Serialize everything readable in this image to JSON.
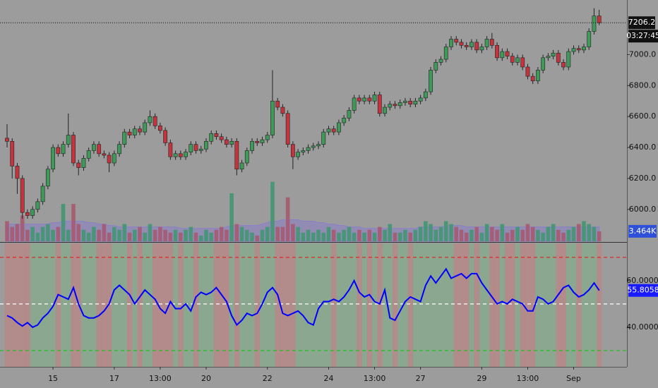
{
  "chart_data": {
    "type": "candlestick",
    "categories": [
      null,
      null,
      null,
      null,
      null,
      null,
      null,
      null,
      null,
      "15",
      null,
      null,
      null,
      null,
      null,
      null,
      null,
      null,
      null,
      null,
      null,
      "17",
      null,
      null,
      null,
      null,
      null,
      null,
      null,
      null,
      "13:00",
      null,
      null,
      null,
      null,
      null,
      null,
      null,
      null,
      "20",
      null,
      null,
      null,
      null,
      null,
      null,
      null,
      null,
      null,
      null,
      null,
      "22",
      null,
      null,
      null,
      null,
      null,
      null,
      null,
      null,
      null,
      null,
      null,
      "24",
      null,
      null,
      null,
      null,
      null,
      null,
      null,
      null,
      "13:00",
      null,
      null,
      null,
      null,
      null,
      null,
      null,
      null,
      "27",
      null,
      null,
      null,
      null,
      null,
      null,
      null,
      null,
      null,
      null,
      null,
      "29",
      null,
      null,
      null,
      null,
      null,
      null,
      null,
      null,
      "13:00",
      null,
      null,
      null,
      null,
      null,
      null,
      null,
      null,
      "Sep",
      null,
      null,
      null,
      null,
      null
    ],
    "open": [
      6460,
      6440,
      6280,
      6200,
      5980,
      5960,
      6000,
      6050,
      6150,
      6260,
      6400,
      6360,
      6420,
      6480,
      6300,
      6270,
      6330,
      6380,
      6420,
      6360,
      6350,
      6300,
      6360,
      6420,
      6500,
      6480,
      6520,
      6500,
      6560,
      6600,
      6540,
      6510,
      6430,
      6340,
      6360,
      6340,
      6370,
      6420,
      6380,
      6390,
      6440,
      6490,
      6470,
      6450,
      6420,
      6440,
      6260,
      6300,
      6380,
      6440,
      6430,
      6450,
      6480,
      6700,
      6660,
      6620,
      6420,
      6340,
      6370,
      6380,
      6400,
      6410,
      6420,
      6500,
      6520,
      6500,
      6560,
      6590,
      6640,
      6720,
      6700,
      6720,
      6700,
      6740,
      6620,
      6660,
      6680,
      6670,
      6690,
      6700,
      6680,
      6700,
      6720,
      6760,
      6900,
      6950,
      6970,
      7050,
      7100,
      7080,
      7060,
      7050,
      7080,
      7030,
      7050,
      7100,
      7060,
      6980,
      7020,
      6990,
      6950,
      6980,
      6920,
      6860,
      6830,
      6900,
      6980,
      6990,
      7010,
      6950,
      6920,
      7020,
      7040,
      7030,
      7050,
      7150,
      7250
    ],
    "high": [
      6550,
      6460,
      6300,
      6220,
      6000,
      6020,
      6070,
      6170,
      6280,
      6420,
      6420,
      6440,
      6620,
      6500,
      6320,
      6350,
      6400,
      6440,
      6440,
      6380,
      6370,
      6380,
      6440,
      6520,
      6520,
      6540,
      6540,
      6580,
      6640,
      6620,
      6560,
      6530,
      6450,
      6380,
      6380,
      6390,
      6440,
      6440,
      6410,
      6460,
      6510,
      6510,
      6490,
      6470,
      6460,
      6460,
      6320,
      6400,
      6460,
      6460,
      6470,
      6500,
      6900,
      6720,
      6680,
      6640,
      6440,
      6390,
      6400,
      6420,
      6430,
      6440,
      6520,
      6540,
      6540,
      6580,
      6610,
      6660,
      6740,
      6740,
      6740,
      6740,
      6760,
      6760,
      6680,
      6700,
      6700,
      6710,
      6720,
      6720,
      6720,
      6740,
      6780,
      6920,
      6970,
      6990,
      7070,
      7120,
      7120,
      7100,
      7080,
      7100,
      7100,
      7070,
      7120,
      7140,
      7080,
      7040,
      7040,
      7010,
      7000,
      7000,
      6940,
      6880,
      6920,
      7000,
      7010,
      7030,
      7030,
      6970,
      7040,
      7060,
      7060,
      7070,
      7170,
      7300,
      7290
    ],
    "low": [
      6400,
      6200,
      6100,
      5940,
      5940,
      5940,
      5980,
      6030,
      6130,
      6240,
      6340,
      6340,
      6400,
      6280,
      6220,
      6250,
      6310,
      6360,
      6340,
      6330,
      6240,
      6280,
      6340,
      6400,
      6460,
      6460,
      6480,
      6480,
      6540,
      6520,
      6490,
      6410,
      6320,
      6320,
      6320,
      6320,
      6350,
      6360,
      6360,
      6370,
      6420,
      6450,
      6430,
      6400,
      6400,
      6220,
      6240,
      6280,
      6360,
      6410,
      6410,
      6430,
      6460,
      6640,
      6600,
      6400,
      6260,
      6320,
      6350,
      6360,
      6380,
      6390,
      6400,
      6480,
      6480,
      6480,
      6540,
      6570,
      6620,
      6680,
      6680,
      6680,
      6680,
      6600,
      6600,
      6640,
      6650,
      6650,
      6670,
      6660,
      6660,
      6680,
      6700,
      6740,
      6880,
      6930,
      6950,
      7030,
      7060,
      7040,
      7030,
      7030,
      7010,
      7010,
      7030,
      7040,
      6960,
      6960,
      6970,
      6930,
      6930,
      6900,
      6840,
      6810,
      6810,
      6880,
      6960,
      6970,
      6930,
      6900,
      6900,
      7000,
      7010,
      7010,
      7030,
      7130,
      7190
    ],
    "close": [
      6440,
      6280,
      6200,
      5980,
      5960,
      6000,
      6050,
      6150,
      6260,
      6400,
      6360,
      6420,
      6480,
      6300,
      6270,
      6330,
      6380,
      6420,
      6360,
      6350,
      6300,
      6360,
      6420,
      6500,
      6480,
      6520,
      6500,
      6560,
      6600,
      6540,
      6510,
      6430,
      6340,
      6360,
      6340,
      6370,
      6420,
      6380,
      6390,
      6440,
      6490,
      6470,
      6450,
      6420,
      6440,
      6260,
      6300,
      6380,
      6440,
      6430,
      6450,
      6480,
      6700,
      6660,
      6620,
      6420,
      6340,
      6370,
      6380,
      6400,
      6410,
      6420,
      6500,
      6520,
      6500,
      6560,
      6590,
      6640,
      6720,
      6700,
      6720,
      6700,
      6740,
      6620,
      6660,
      6680,
      6670,
      6690,
      6700,
      6680,
      6700,
      6720,
      6760,
      6900,
      6950,
      6970,
      7050,
      7100,
      7080,
      7060,
      7050,
      7080,
      7030,
      7050,
      7100,
      7060,
      6980,
      7020,
      6990,
      6950,
      6980,
      6920,
      6860,
      6830,
      6900,
      6980,
      6990,
      7010,
      6950,
      6920,
      7020,
      7040,
      7030,
      7050,
      7150,
      7250,
      7206.2
    ],
    "colors": {
      "up": "#3f9a5a",
      "down": "#c4343f"
    },
    "ylim": [
      5794,
      7353
    ],
    "yticks": [
      {
        "value": 6000,
        "label": "6000.0"
      },
      {
        "value": 6200,
        "label": "6200.0"
      },
      {
        "value": 6400,
        "label": "6400.0"
      },
      {
        "value": 6600,
        "label": "6600.0"
      },
      {
        "value": 6800,
        "label": "6800.0"
      },
      {
        "value": 7000,
        "label": "7000.0"
      }
    ],
    "countdown": "03:27:45",
    "volume": {
      "values": [
        7,
        5,
        6,
        9,
        4,
        5,
        3,
        5,
        6,
        4,
        5,
        13,
        4,
        13,
        6,
        4,
        3,
        5,
        4,
        6,
        3,
        5,
        4,
        6,
        3,
        4,
        5,
        3,
        6,
        4,
        5,
        4,
        3,
        4,
        3,
        4,
        5,
        3,
        2,
        4,
        3,
        4,
        5,
        4,
        16.7,
        6,
        5,
        4,
        3,
        2,
        4,
        5,
        20.7,
        5,
        5,
        15.3,
        6,
        5,
        3,
        4,
        3,
        4,
        3,
        5,
        4,
        3,
        4,
        5,
        3,
        4,
        3,
        4,
        3,
        5,
        4,
        6,
        3,
        3,
        4,
        3,
        4,
        5,
        7,
        6,
        4,
        5,
        7,
        6,
        5,
        4,
        3,
        4,
        5,
        3,
        6,
        5,
        4,
        6,
        3,
        4,
        5,
        4,
        6,
        5,
        4,
        3,
        5,
        6,
        4,
        3,
        4,
        5,
        6,
        7,
        6,
        5,
        3.464
      ],
      "last_value_label": "3.464K",
      "ylim": [
        0,
        84
      ],
      "ma": [
        6,
        6,
        6,
        6,
        6,
        6,
        6,
        6,
        6,
        6.5,
        6.5,
        7,
        7,
        7,
        7,
        7,
        6.5,
        6.5,
        6,
        6,
        5.5,
        5.5,
        5,
        5,
        5,
        5,
        5,
        5,
        5,
        5,
        5,
        5,
        5,
        5,
        4.5,
        4.5,
        4.5,
        4.5,
        4.5,
        4.5,
        4.5,
        4.5,
        4.5,
        5,
        5.5,
        5.5,
        5.5,
        5.5,
        5.5,
        5.5,
        6,
        6.5,
        7,
        7,
        7.5,
        7.5,
        7.5,
        7.5,
        7,
        7,
        7,
        6.5,
        6.5,
        6,
        6,
        5.5,
        5.5,
        5,
        5,
        5,
        4.5,
        4.5,
        4.5,
        4.5,
        4.5,
        4.5,
        4.5,
        4.5,
        4.5,
        4.5,
        4.5,
        5,
        5,
        5,
        5,
        5,
        5.5,
        5.5,
        5.5,
        5.5,
        5,
        5,
        5,
        5,
        5,
        5,
        5,
        5,
        5,
        5,
        5,
        5,
        5,
        5,
        5,
        5,
        5,
        5,
        5,
        5,
        5,
        5,
        5,
        5,
        5,
        5,
        5
      ],
      "ma_color": "#8a80c8"
    },
    "rsi": {
      "values": [
        45,
        44,
        42,
        40.5,
        42,
        40,
        41,
        44,
        46,
        49,
        54,
        53,
        52,
        57,
        50,
        45,
        44,
        44,
        45,
        47,
        50,
        56,
        58,
        56,
        54,
        50,
        53,
        56,
        54,
        52,
        48,
        46,
        51,
        48,
        48,
        50,
        47,
        53,
        55,
        54,
        55,
        57,
        54,
        51,
        45,
        41,
        43,
        46,
        45,
        46,
        50,
        55,
        57,
        54,
        46,
        45,
        46,
        47,
        45,
        42,
        41,
        48,
        51,
        51,
        52,
        51,
        53,
        56,
        60,
        55,
        53,
        54,
        51,
        50,
        56,
        44,
        43,
        47,
        51,
        53,
        52,
        51,
        58,
        62,
        59,
        62,
        65,
        61,
        62,
        63,
        61,
        63,
        63,
        59,
        56,
        53,
        50,
        51,
        50,
        52,
        51,
        50,
        47,
        47,
        53,
        52,
        50,
        51,
        54,
        57,
        58,
        55,
        53,
        54,
        56,
        59,
        55.8058
      ],
      "color": "#0000ff",
      "ylim": [
        23,
        76
      ],
      "yticks": [
        {
          "value": 40,
          "label": "40.0000"
        },
        {
          "value": 60,
          "label": "60.0000"
        }
      ],
      "levels": [
        {
          "value": 70,
          "color": "#e02020"
        },
        {
          "value": 50,
          "color": "#ffffff"
        },
        {
          "value": 30,
          "color": "#20c020"
        }
      ]
    }
  }
}
